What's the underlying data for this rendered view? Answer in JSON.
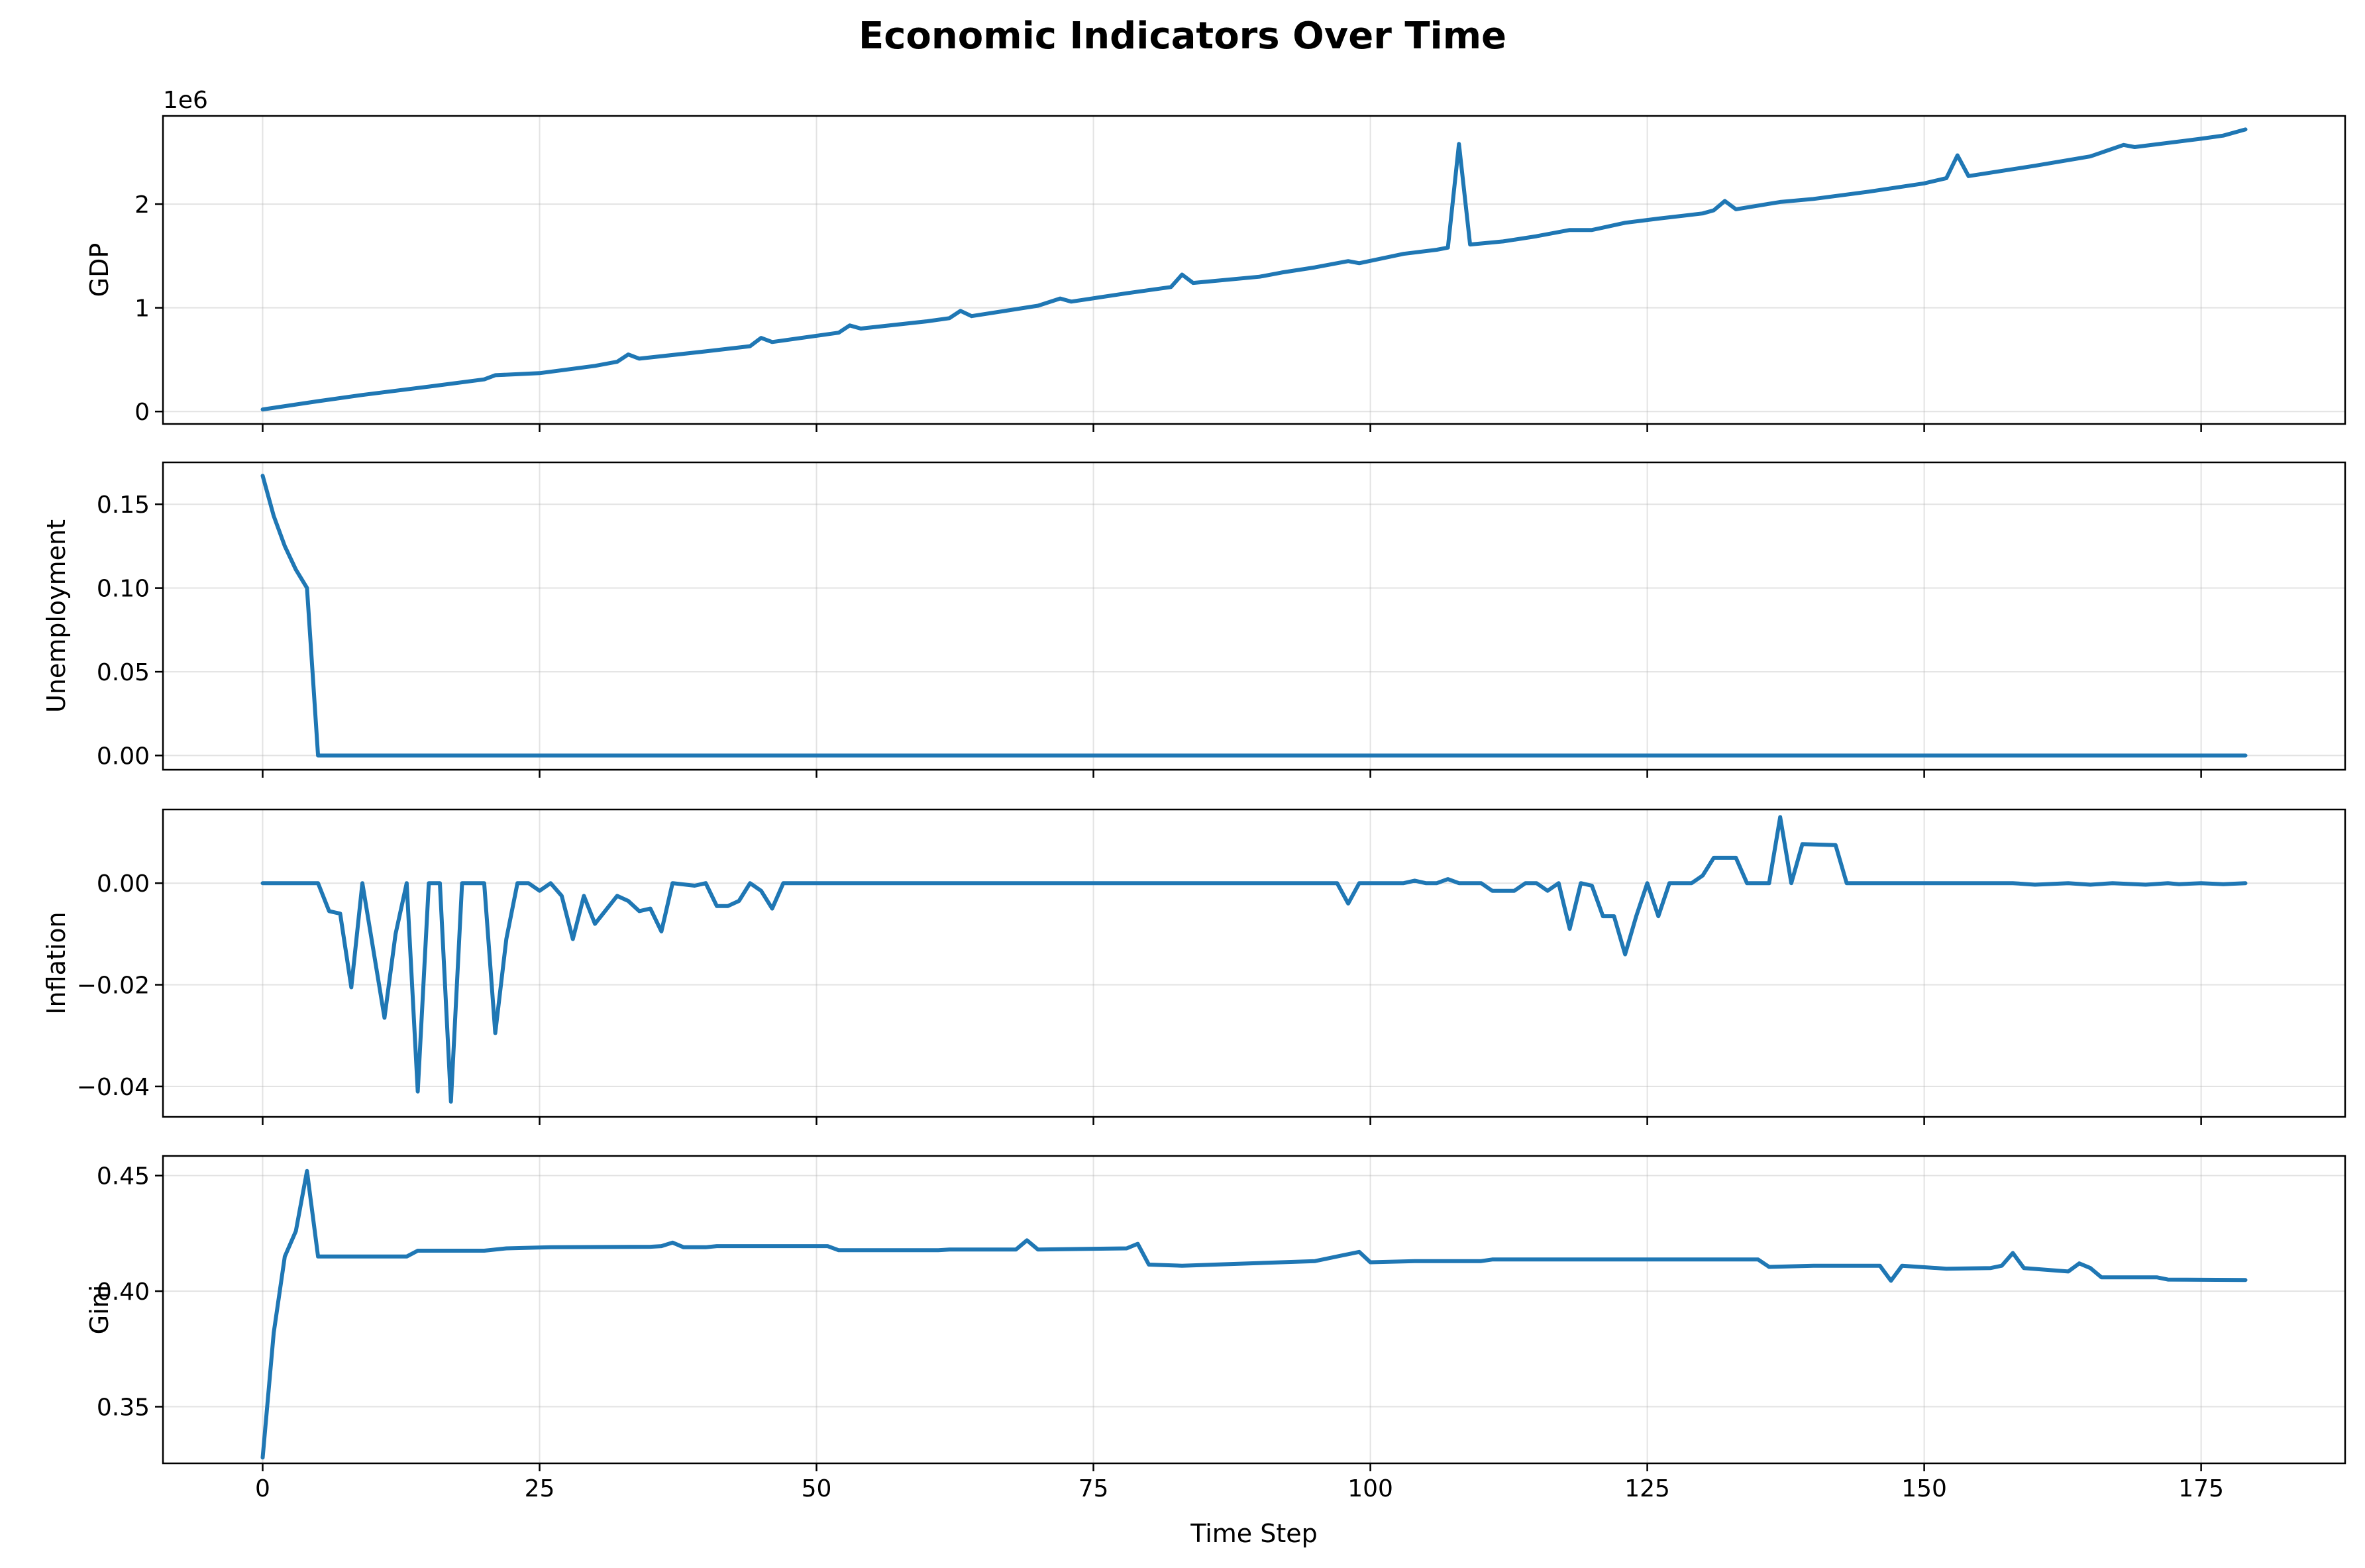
{
  "chart_data": {
    "type": "line",
    "title": "Economic Indicators Over Time",
    "xlabel": "Time Step",
    "xlim": [
      -9,
      188
    ],
    "xticks": [
      0,
      25,
      50,
      75,
      100,
      125,
      150,
      175
    ],
    "xtick_labels": [
      "0",
      "25",
      "50",
      "75",
      "100",
      "125",
      "150",
      "175"
    ],
    "grid": true,
    "line_color": "#1f77b4",
    "subplots": [
      {
        "ylabel": "GDP",
        "offset_label": "1e6",
        "ylim": [
          -0.12,
          2.85
        ],
        "yticks": [
          0,
          1,
          2
        ],
        "ytick_labels": [
          "0",
          "1",
          "2"
        ],
        "series": [
          {
            "points": [
              [
                0,
                0.02
              ],
              [
                5,
                0.1
              ],
              [
                9,
                0.16
              ],
              [
                15,
                0.24
              ],
              [
                20,
                0.31
              ],
              [
                21,
                0.35
              ],
              [
                25,
                0.37
              ],
              [
                30,
                0.44
              ],
              [
                32,
                0.48
              ],
              [
                33,
                0.55
              ],
              [
                34,
                0.51
              ],
              [
                40,
                0.58
              ],
              [
                44,
                0.63
              ],
              [
                45,
                0.71
              ],
              [
                46,
                0.67
              ],
              [
                52,
                0.76
              ],
              [
                53,
                0.83
              ],
              [
                54,
                0.8
              ],
              [
                60,
                0.87
              ],
              [
                62,
                0.9
              ],
              [
                63,
                0.97
              ],
              [
                64,
                0.92
              ],
              [
                70,
                1.02
              ],
              [
                72,
                1.09
              ],
              [
                73,
                1.06
              ],
              [
                78,
                1.14
              ],
              [
                82,
                1.2
              ],
              [
                83,
                1.32
              ],
              [
                84,
                1.24
              ],
              [
                90,
                1.3
              ],
              [
                92,
                1.34
              ],
              [
                95,
                1.39
              ],
              [
                98,
                1.45
              ],
              [
                99,
                1.43
              ],
              [
                103,
                1.52
              ],
              [
                106,
                1.56
              ],
              [
                107,
                1.58
              ],
              [
                108,
                2.58
              ],
              [
                109,
                1.61
              ],
              [
                112,
                1.64
              ],
              [
                115,
                1.69
              ],
              [
                118,
                1.75
              ],
              [
                120,
                1.75
              ],
              [
                123,
                1.82
              ],
              [
                126,
                1.86
              ],
              [
                130,
                1.91
              ],
              [
                131,
                1.94
              ],
              [
                132,
                2.03
              ],
              [
                133,
                1.95
              ],
              [
                137,
                2.02
              ],
              [
                140,
                2.05
              ],
              [
                145,
                2.12
              ],
              [
                150,
                2.2
              ],
              [
                152,
                2.25
              ],
              [
                153,
                2.47
              ],
              [
                154,
                2.27
              ],
              [
                160,
                2.37
              ],
              [
                165,
                2.46
              ],
              [
                168,
                2.57
              ],
              [
                169,
                2.55
              ],
              [
                175,
                2.63
              ],
              [
                177,
                2.66
              ],
              [
                179,
                2.72
              ]
            ]
          }
        ]
      },
      {
        "ylabel": "Unemployment",
        "ylim": [
          -0.0085,
          0.175
        ],
        "yticks": [
          0.0,
          0.05,
          0.1,
          0.15
        ],
        "ytick_labels": [
          "0.00",
          "0.05",
          "0.10",
          "0.15"
        ],
        "series": [
          {
            "points": [
              [
                0,
                0.167
              ],
              [
                1,
                0.143
              ],
              [
                2,
                0.125
              ],
              [
                3,
                0.111
              ],
              [
                4,
                0.1
              ],
              [
                5,
                0.0
              ],
              [
                179,
                0.0
              ]
            ]
          }
        ]
      },
      {
        "ylabel": "Inflation",
        "ylim": [
          -0.046,
          0.0145
        ],
        "yticks": [
          -0.04,
          -0.02,
          0.0
        ],
        "ytick_labels": [
          "−0.04",
          "−0.02",
          "0.00"
        ],
        "series": [
          {
            "points": [
              [
                0,
                0
              ],
              [
                5,
                0
              ],
              [
                6,
                -0.0055
              ],
              [
                7,
                -0.006
              ],
              [
                8,
                -0.0205
              ],
              [
                9,
                0
              ],
              [
                11,
                -0.0265
              ],
              [
                12,
                -0.01
              ],
              [
                13,
                0
              ],
              [
                14,
                -0.041
              ],
              [
                15,
                0
              ],
              [
                16,
                0
              ],
              [
                17,
                -0.043
              ],
              [
                18,
                0
              ],
              [
                20,
                0
              ],
              [
                21,
                -0.0295
              ],
              [
                22,
                -0.011
              ],
              [
                23,
                0
              ],
              [
                24,
                0
              ],
              [
                25,
                -0.0015
              ],
              [
                26,
                0
              ],
              [
                27,
                -0.0025
              ],
              [
                28,
                -0.011
              ],
              [
                29,
                -0.0025
              ],
              [
                30,
                -0.008
              ],
              [
                32,
                -0.0025
              ],
              [
                33,
                -0.0035
              ],
              [
                34,
                -0.0055
              ],
              [
                35,
                -0.005
              ],
              [
                36,
                -0.0095
              ],
              [
                37,
                0
              ],
              [
                39,
                -0.0005
              ],
              [
                40,
                0
              ],
              [
                41,
                -0.0045
              ],
              [
                42,
                -0.0045
              ],
              [
                43,
                -0.0035
              ],
              [
                44,
                0
              ],
              [
                45,
                -0.0015
              ],
              [
                46,
                -0.005
              ],
              [
                47,
                0
              ],
              [
                97,
                0
              ],
              [
                98,
                -0.004
              ],
              [
                99,
                0
              ],
              [
                103,
                0
              ],
              [
                104,
                0.0005
              ],
              [
                105,
                0
              ],
              [
                106,
                0
              ],
              [
                107,
                0.0008
              ],
              [
                108,
                0
              ],
              [
                110,
                0
              ],
              [
                111,
                -0.0015
              ],
              [
                113,
                -0.0015
              ],
              [
                114,
                0
              ],
              [
                115,
                0
              ],
              [
                116,
                -0.0015
              ],
              [
                117,
                0
              ],
              [
                118,
                -0.009
              ],
              [
                119,
                0
              ],
              [
                120,
                -0.0005
              ],
              [
                121,
                -0.0065
              ],
              [
                122,
                -0.0065
              ],
              [
                123,
                -0.014
              ],
              [
                124,
                -0.0065
              ],
              [
                125,
                0
              ],
              [
                126,
                -0.0065
              ],
              [
                127,
                0
              ],
              [
                129,
                0
              ],
              [
                130,
                0.0015
              ],
              [
                131,
                0.005
              ],
              [
                133,
                0.005
              ],
              [
                134,
                0
              ],
              [
                136,
                0
              ],
              [
                137,
                0.013
              ],
              [
                138,
                0
              ],
              [
                139,
                0.0077
              ],
              [
                142,
                0.0075
              ],
              [
                143,
                0
              ],
              [
                158,
                0
              ],
              [
                160,
                -0.0003
              ],
              [
                163,
                0
              ],
              [
                165,
                -0.0003
              ],
              [
                167,
                0
              ],
              [
                170,
                -0.0003
              ],
              [
                172,
                0
              ],
              [
                173,
                -0.0002
              ],
              [
                175,
                0
              ],
              [
                177,
                -0.0002
              ],
              [
                179,
                0
              ]
            ]
          }
        ]
      },
      {
        "ylabel": "Gini",
        "ylim": [
          0.3255,
          0.4585
        ],
        "yticks": [
          0.35,
          0.4,
          0.45
        ],
        "ytick_labels": [
          "0.35",
          "0.40",
          "0.45"
        ],
        "series": [
          {
            "points": [
              [
                0,
                0.328
              ],
              [
                1,
                0.382
              ],
              [
                2,
                0.415
              ],
              [
                3,
                0.426
              ],
              [
                4,
                0.452
              ],
              [
                5,
                0.415
              ],
              [
                13,
                0.415
              ],
              [
                14,
                0.4175
              ],
              [
                20,
                0.4175
              ],
              [
                22,
                0.4185
              ],
              [
                26,
                0.419
              ],
              [
                35,
                0.4192
              ],
              [
                36,
                0.4195
              ],
              [
                37,
                0.421
              ],
              [
                38,
                0.419
              ],
              [
                40,
                0.419
              ],
              [
                41,
                0.4195
              ],
              [
                51,
                0.4195
              ],
              [
                52,
                0.4177
              ],
              [
                61,
                0.4177
              ],
              [
                62,
                0.418
              ],
              [
                68,
                0.418
              ],
              [
                69,
                0.422
              ],
              [
                70,
                0.418
              ],
              [
                78,
                0.4185
              ],
              [
                79,
                0.4205
              ],
              [
                80,
                0.4115
              ],
              [
                83,
                0.411
              ],
              [
                95,
                0.413
              ],
              [
                99,
                0.417
              ],
              [
                100,
                0.4125
              ],
              [
                104,
                0.413
              ],
              [
                110,
                0.413
              ],
              [
                111,
                0.4137
              ],
              [
                135,
                0.4137
              ],
              [
                136,
                0.4105
              ],
              [
                140,
                0.411
              ],
              [
                146,
                0.411
              ],
              [
                147,
                0.4045
              ],
              [
                148,
                0.411
              ],
              [
                152,
                0.4097
              ],
              [
                156,
                0.41
              ],
              [
                157,
                0.411
              ],
              [
                158,
                0.4165
              ],
              [
                159,
                0.41
              ],
              [
                163,
                0.4085
              ],
              [
                164,
                0.412
              ],
              [
                165,
                0.41
              ],
              [
                166,
                0.406
              ],
              [
                171,
                0.406
              ],
              [
                172,
                0.405
              ],
              [
                179,
                0.4048
              ]
            ]
          }
        ]
      }
    ]
  }
}
